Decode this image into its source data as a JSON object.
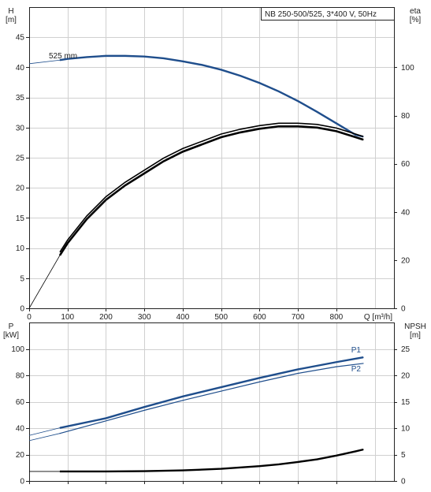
{
  "chart_data": [
    {
      "type": "line",
      "title": "NB 250-500/525, 3*400 V, 50Hz",
      "xlabel": "Q [m³/h]",
      "ylabel": "H\n[m]",
      "ylabel_right": "eta\n[%]",
      "xlim": [
        0,
        950
      ],
      "ylim": [
        0,
        50
      ],
      "ylim_right": [
        0,
        125
      ],
      "x_ticks": [
        "0",
        "100",
        "200",
        "300",
        "400",
        "500",
        "600",
        "700",
        "800"
      ],
      "y_ticks": [
        "0",
        "5",
        "10",
        "15",
        "20",
        "25",
        "30",
        "35",
        "40",
        "45"
      ],
      "y_ticks_right": [
        "0",
        "20",
        "40",
        "60",
        "80",
        "100"
      ],
      "grid": true,
      "series": [
        {
          "name": "525 mm",
          "axis": "left",
          "color": "#1f4e8c",
          "style": "thick",
          "x": [
            0,
            80,
            100,
            150,
            200,
            250,
            300,
            350,
            400,
            450,
            500,
            550,
            600,
            650,
            700,
            750,
            800,
            850,
            870
          ],
          "y": [
            40.6,
            41.2,
            41.4,
            41.7,
            41.9,
            41.9,
            41.8,
            41.5,
            41.0,
            40.4,
            39.6,
            38.6,
            37.4,
            36.0,
            34.4,
            32.6,
            30.7,
            28.8,
            28.5
          ]
        },
        {
          "name": "",
          "axis": "right",
          "color": "#000000",
          "style": "double",
          "x": [
            0,
            80,
            100,
            150,
            200,
            250,
            300,
            350,
            400,
            450,
            500,
            550,
            600,
            650,
            700,
            750,
            800,
            850,
            870
          ],
          "y": [
            0,
            22,
            27,
            37,
            45,
            51,
            56,
            61,
            65,
            68,
            71,
            73,
            74.5,
            75.5,
            75.5,
            75,
            73.5,
            71,
            70
          ]
        }
      ]
    },
    {
      "type": "line",
      "title": "",
      "xlabel": "",
      "ylabel": "P\n[kW]",
      "ylabel_right": "NPSH\n[m]",
      "xlim": [
        0,
        950
      ],
      "ylim": [
        0,
        120
      ],
      "ylim_right": [
        0,
        30
      ],
      "y_ticks": [
        "0",
        "20",
        "40",
        "60",
        "80",
        "100"
      ],
      "y_ticks_right": [
        "0",
        "5",
        "10",
        "15",
        "20",
        "25"
      ],
      "grid": true,
      "series": [
        {
          "name": "P1",
          "axis": "left",
          "color": "#1f4e8c",
          "style": "thick",
          "x": [
            0,
            80,
            200,
            300,
            400,
            500,
            600,
            700,
            800,
            870
          ],
          "y": [
            34.5,
            40.2,
            47.5,
            56,
            64,
            71,
            78,
            84.5,
            90,
            93.6
          ]
        },
        {
          "name": "P2",
          "axis": "left",
          "color": "#1f4e8c",
          "style": "thin",
          "x": [
            0,
            80,
            200,
            300,
            400,
            500,
            600,
            700,
            800,
            870
          ],
          "y": [
            30.5,
            36,
            45.5,
            53.5,
            61,
            68,
            75,
            81.5,
            86.5,
            89
          ]
        },
        {
          "name": "",
          "axis": "right",
          "color": "#000000",
          "style": "thick",
          "x": [
            0,
            80,
            200,
            300,
            400,
            500,
            600,
            650,
            700,
            750,
            800,
            850,
            870
          ],
          "y": [
            1.8,
            1.8,
            1.8,
            1.85,
            2.0,
            2.3,
            2.8,
            3.15,
            3.6,
            4.1,
            4.8,
            5.6,
            5.95
          ]
        }
      ]
    }
  ]
}
